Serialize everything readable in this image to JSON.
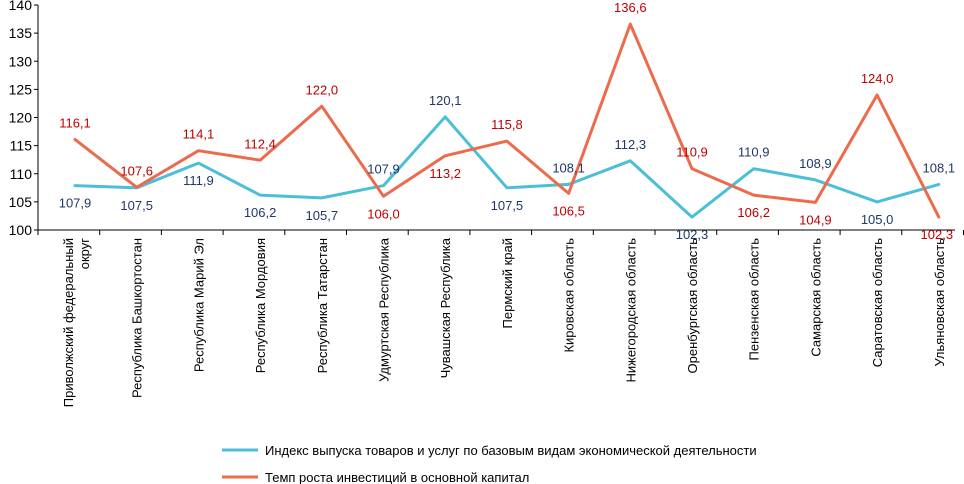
{
  "chart_data": {
    "type": "line",
    "title": "",
    "xlabel": "",
    "ylabel": "",
    "ylim": [
      100,
      140
    ],
    "yticks": [
      100,
      105,
      110,
      115,
      120,
      125,
      130,
      135,
      140
    ],
    "grid": false,
    "legend_position": "bottom",
    "categories": [
      "Приволжский федеральный округ",
      "Республика Башкортостан",
      "Республика Марий Эл",
      "Республика Мордовия",
      "Республика Татарстан",
      "Удмуртская Республика",
      "Чувашская Республика",
      "Пермский край",
      "Кировская область",
      "Нижегородская область",
      "Оренбургская область",
      "Пензенская область",
      "Самарская область",
      "Саратовская область",
      "Ульяновская область"
    ],
    "series": [
      {
        "name": "Индекс выпуска товаров и услуг по базовым видам экономической деятельности",
        "color": "#4bbfd8",
        "label_color": "#1f3864",
        "values": [
          107.9,
          107.5,
          111.9,
          106.2,
          105.7,
          107.9,
          120.1,
          107.5,
          108.1,
          112.3,
          102.3,
          110.9,
          108.9,
          105.0,
          108.1
        ],
        "labels": [
          "107,9",
          "107,5",
          "111,9",
          "106,2",
          "105,7",
          "107,9",
          "120,1",
          "107,5",
          "108,1",
          "112,3",
          "102,3",
          "110,9",
          "108,9",
          "105,0",
          "108,1"
        ]
      },
      {
        "name": "Темп роста инвестиций в основной капитал",
        "color": "#ed6b4d",
        "label_color": "#c00000",
        "values": [
          116.1,
          107.6,
          114.1,
          112.4,
          122.0,
          106.0,
          113.2,
          115.8,
          106.5,
          136.6,
          110.9,
          106.2,
          104.9,
          124.0,
          102.3
        ],
        "labels": [
          "116,1",
          "107,6",
          "114,1",
          "112,4",
          "122,0",
          "106,0",
          "113,2",
          "115,8",
          "106,5",
          "136,6",
          "110,9",
          "106,2",
          "104,9",
          "124,0",
          "102,3"
        ]
      }
    ]
  }
}
